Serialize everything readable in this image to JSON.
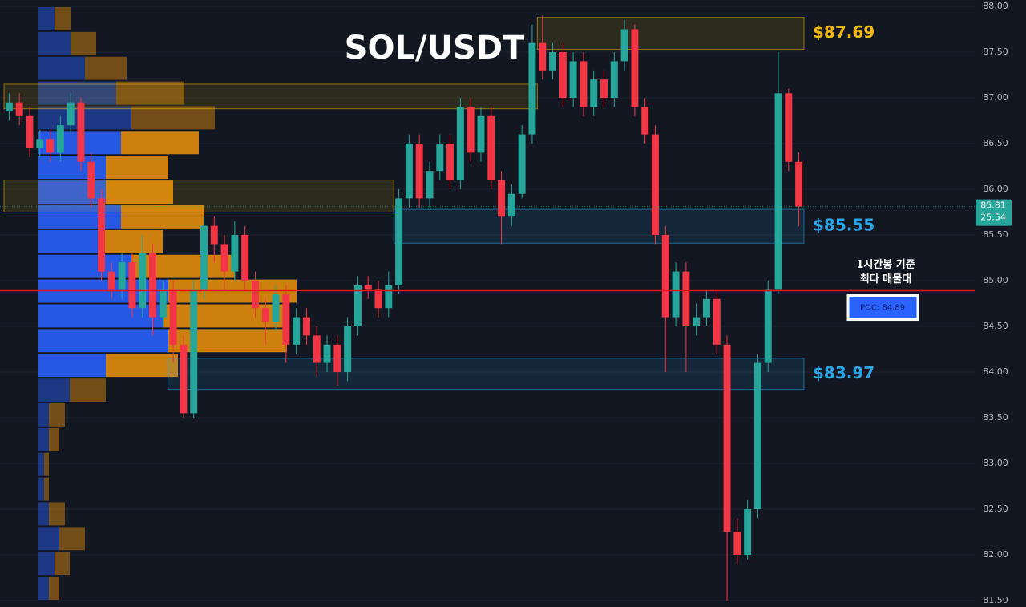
{
  "chart_data": {
    "type": "candlestick",
    "title": "SOL/USDT",
    "ylim": [
      81.5,
      88.0
    ],
    "yticks": [
      {
        "value": 88.0,
        "label": "88.00"
      },
      {
        "value": 87.5,
        "label": "87.50"
      },
      {
        "value": 87.0,
        "label": "87.00"
      },
      {
        "value": 86.5,
        "label": "86.50"
      },
      {
        "value": 86.0,
        "label": "86.00"
      },
      {
        "value": 85.5,
        "label": "85.50"
      },
      {
        "value": 85.0,
        "label": "85.00"
      },
      {
        "value": 84.5,
        "label": "84.50"
      },
      {
        "value": 84.0,
        "label": "84.00"
      },
      {
        "value": 83.5,
        "label": "83.50"
      },
      {
        "value": 83.0,
        "label": "83.00"
      },
      {
        "value": 82.5,
        "label": "82.50"
      },
      {
        "value": 82.0,
        "label": "82.00"
      },
      {
        "value": 81.5,
        "label": "81.50"
      }
    ],
    "up_color": "#26a69a",
    "down_color": "#f23645",
    "open": [
      86.85,
      86.95,
      86.8,
      86.45,
      86.55,
      86.4,
      86.7,
      86.95,
      86.3,
      85.9,
      85.1,
      84.9,
      85.2,
      84.7,
      85.3,
      84.6,
      84.9,
      84.3,
      83.55,
      84.9,
      85.6,
      85.4,
      85.1,
      85.5,
      85.0,
      84.7,
      84.55,
      84.85,
      84.3,
      84.6,
      84.4,
      84.1,
      84.3,
      84.0,
      84.5,
      84.95,
      84.9,
      84.7,
      84.95,
      85.9,
      86.5,
      85.9,
      86.2,
      86.5,
      86.1,
      86.9,
      86.4,
      86.8,
      86.1,
      85.7,
      85.95,
      86.6,
      87.6,
      87.3,
      87.5,
      87.0,
      87.4,
      86.9,
      87.2,
      87.0,
      87.4,
      87.75,
      86.9,
      86.6,
      85.5,
      84.6,
      85.1,
      84.5,
      84.6,
      84.8,
      84.3,
      82.25,
      82.0,
      82.5,
      84.1,
      84.9,
      87.05,
      86.3
    ],
    "high": [
      87.05,
      87.05,
      86.9,
      86.65,
      86.65,
      86.8,
      87.05,
      87.0,
      86.4,
      86.0,
      85.2,
      85.3,
      85.3,
      85.5,
      85.4,
      85.0,
      85.0,
      84.4,
      85.0,
      85.7,
      85.7,
      85.5,
      85.65,
      85.6,
      85.1,
      84.8,
      84.95,
      84.95,
      84.7,
      84.7,
      84.5,
      84.4,
      84.4,
      84.6,
      85.05,
      85.05,
      85.0,
      85.1,
      86.0,
      86.6,
      86.6,
      86.3,
      86.6,
      86.6,
      87.0,
      87.0,
      86.9,
      86.9,
      86.2,
      86.05,
      86.7,
      87.8,
      87.9,
      87.6,
      87.6,
      87.5,
      87.5,
      87.3,
      87.3,
      87.5,
      87.85,
      87.8,
      87.0,
      86.7,
      85.6,
      85.2,
      85.2,
      84.75,
      84.9,
      84.9,
      84.4,
      82.4,
      82.6,
      84.2,
      85.0,
      87.5,
      87.1,
      86.4
    ],
    "low": [
      86.75,
      86.7,
      86.35,
      86.35,
      86.3,
      86.3,
      86.6,
      86.2,
      85.8,
      85.0,
      84.8,
      84.8,
      84.6,
      84.6,
      84.4,
      84.5,
      84.1,
      83.5,
      83.5,
      84.8,
      85.2,
      84.9,
      85.0,
      84.9,
      84.6,
      84.3,
      84.45,
      84.1,
      84.2,
      84.3,
      83.95,
      84.0,
      83.85,
      83.9,
      84.4,
      84.8,
      84.6,
      84.6,
      84.85,
      85.8,
      85.8,
      85.8,
      86.1,
      86.0,
      86.0,
      86.3,
      86.3,
      86.0,
      85.4,
      85.6,
      85.9,
      86.5,
      87.2,
      87.2,
      86.9,
      86.9,
      86.8,
      86.8,
      86.9,
      86.9,
      87.3,
      86.8,
      86.5,
      85.4,
      84.0,
      84.5,
      84.0,
      84.4,
      84.5,
      84.2,
      81.5,
      81.9,
      81.95,
      82.4,
      84.0,
      84.85,
      86.2,
      85.6
    ],
    "close": [
      86.95,
      86.8,
      86.45,
      86.55,
      86.4,
      86.7,
      86.95,
      86.3,
      85.9,
      85.1,
      84.9,
      85.2,
      84.7,
      85.3,
      84.6,
      84.9,
      84.3,
      83.55,
      84.9,
      85.6,
      85.4,
      85.1,
      85.5,
      85.0,
      84.7,
      84.55,
      84.85,
      84.3,
      84.6,
      84.4,
      84.1,
      84.3,
      84.0,
      84.5,
      84.95,
      84.9,
      84.7,
      84.95,
      85.9,
      86.5,
      85.9,
      86.2,
      86.5,
      86.1,
      86.9,
      86.4,
      86.8,
      86.1,
      85.7,
      85.95,
      86.6,
      87.6,
      87.3,
      87.5,
      87.0,
      87.4,
      86.9,
      87.2,
      87.0,
      87.4,
      87.75,
      86.9,
      86.6,
      85.5,
      84.6,
      85.1,
      84.5,
      84.6,
      84.8,
      84.3,
      82.25,
      82.0,
      82.5,
      84.1,
      84.9,
      87.05,
      86.3,
      85.81
    ],
    "volume_profile": {
      "buy_color": "#2962ff",
      "sell_color": "#e8900c",
      "xlim": [
        0,
        330
      ],
      "buy": [
        20,
        40,
        58,
        97,
        116,
        103,
        84,
        84,
        103,
        78,
        116,
        162,
        155,
        162,
        84,
        39,
        13,
        13,
        7,
        7,
        13,
        26,
        20,
        13
      ],
      "sell": [
        20,
        32,
        52,
        85,
        104,
        97,
        78,
        84,
        104,
        77,
        129,
        160,
        155,
        148,
        90,
        45,
        20,
        13,
        6,
        6,
        20,
        32,
        19,
        13
      ]
    },
    "zones": [
      {
        "top": 87.88,
        "bottom": 87.53,
        "start": 52,
        "end": 78,
        "label": "$87.69",
        "color": "#f0b90b"
      },
      {
        "top": 87.15,
        "bottom": 86.88,
        "start": 0,
        "end": 52,
        "color": "#f0b90b"
      },
      {
        "top": 86.1,
        "bottom": 85.75,
        "start": 0,
        "end": 38,
        "color": "#f0b90b"
      },
      {
        "top": 85.78,
        "bottom": 85.41,
        "start": 38,
        "end": 78,
        "label": "$85.55",
        "color": "#2aa5e6"
      },
      {
        "top": 84.15,
        "bottom": 83.81,
        "start": 16,
        "end": 78,
        "label": "$83.97",
        "color": "#2aa5e6"
      }
    ],
    "poc": {
      "value": 84.89,
      "label": "POC: 84.89",
      "color": "#e0141e"
    },
    "annotation": [
      "1시간봉 기준",
      "최다 매물대"
    ],
    "last_price": {
      "value": 85.81,
      "label": "85.81",
      "timer": "25:54"
    }
  }
}
